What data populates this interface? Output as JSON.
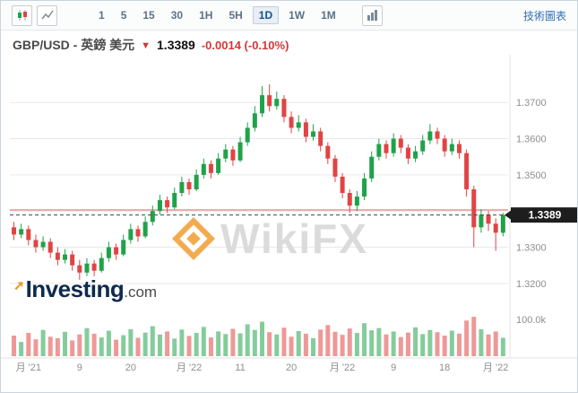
{
  "toolbar": {
    "timeframes": [
      "1",
      "5",
      "15",
      "30",
      "1H",
      "5H",
      "1D",
      "1W",
      "1M"
    ],
    "selected_timeframe": "1D",
    "link": "技術圖表",
    "icons": [
      "candlestick-chart-icon",
      "area-chart-icon",
      "indicators-icon"
    ]
  },
  "header": {
    "title": "GBP/USD - 英鎊 美元",
    "arrow": "▼",
    "price": "1.3389",
    "change": "-0.0014 (-0.10%)"
  },
  "watermark": {
    "text": "WikiFX"
  },
  "logo": {
    "arrow": "➚",
    "text_main": "Investing",
    "text_suffix": ".com"
  },
  "colors": {
    "up": "#1fa24a",
    "down": "#e04444",
    "accent_blue": "#2f6eb5",
    "change_red": "#d43737",
    "price_tag_bg": "#1e1e1e",
    "watermark_orange": "#f2a33c",
    "grid": "#e9e9e9",
    "axis_text": "#8e8e8e"
  },
  "chart_data": {
    "type": "candlestick",
    "pair": "GBP/USD",
    "title": "GBP/USD - 英鎊 美元",
    "last_price": 1.3389,
    "prev_close_line": 1.3403,
    "ylim": [
      1.316,
      1.376
    ],
    "y_ticks": [
      "1.3700",
      "1.3600",
      "1.3500",
      "1.3400",
      "1.3300",
      "1.3200"
    ],
    "x_labels": [
      "月 '21",
      "9",
      "20",
      "月 '22",
      "11",
      "20",
      "月 '22",
      "9",
      "18",
      "月 '22"
    ],
    "x_label_indices": [
      2,
      9,
      16,
      24,
      31,
      38,
      45,
      52,
      59,
      66
    ],
    "volume_tick": "100.0k",
    "volume_max": 110,
    "candles": [
      [
        1.3355,
        1.337,
        1.332,
        1.3335
      ],
      [
        1.3335,
        1.3365,
        1.3325,
        1.335
      ],
      [
        1.335,
        1.336,
        1.3305,
        1.332
      ],
      [
        1.332,
        1.3335,
        1.3285,
        1.33
      ],
      [
        1.33,
        1.333,
        1.329,
        1.3315
      ],
      [
        1.3315,
        1.3325,
        1.327,
        1.3285
      ],
      [
        1.3285,
        1.33,
        1.325,
        1.3265
      ],
      [
        1.3265,
        1.3295,
        1.3255,
        1.328
      ],
      [
        1.328,
        1.329,
        1.3235,
        1.325
      ],
      [
        1.325,
        1.3265,
        1.321,
        1.323
      ],
      [
        1.323,
        1.327,
        1.322,
        1.3255
      ],
      [
        1.3255,
        1.3265,
        1.322,
        1.3235
      ],
      [
        1.3235,
        1.3285,
        1.323,
        1.327
      ],
      [
        1.327,
        1.3315,
        1.326,
        1.33
      ],
      [
        1.33,
        1.331,
        1.3265,
        1.328
      ],
      [
        1.328,
        1.3335,
        1.3275,
        1.332
      ],
      [
        1.332,
        1.3365,
        1.331,
        1.335
      ],
      [
        1.335,
        1.336,
        1.3315,
        1.333
      ],
      [
        1.333,
        1.3385,
        1.3325,
        1.337
      ],
      [
        1.337,
        1.3415,
        1.336,
        1.34
      ],
      [
        1.34,
        1.3445,
        1.339,
        1.343
      ],
      [
        1.343,
        1.344,
        1.3395,
        1.341
      ],
      [
        1.341,
        1.3465,
        1.3405,
        1.345
      ],
      [
        1.345,
        1.3495,
        1.344,
        1.348
      ],
      [
        1.348,
        1.349,
        1.3445,
        1.346
      ],
      [
        1.346,
        1.3515,
        1.3455,
        1.35
      ],
      [
        1.35,
        1.3545,
        1.349,
        1.353
      ],
      [
        1.353,
        1.354,
        1.349,
        1.3505
      ],
      [
        1.3505,
        1.356,
        1.35,
        1.3545
      ],
      [
        1.3545,
        1.3585,
        1.3535,
        1.357
      ],
      [
        1.357,
        1.358,
        1.3525,
        1.354
      ],
      [
        1.354,
        1.3605,
        1.3535,
        1.359
      ],
      [
        1.359,
        1.3645,
        1.358,
        1.363
      ],
      [
        1.363,
        1.369,
        1.362,
        1.367
      ],
      [
        1.367,
        1.3745,
        1.366,
        1.372
      ],
      [
        1.372,
        1.375,
        1.3675,
        1.369
      ],
      [
        1.369,
        1.373,
        1.368,
        1.371
      ],
      [
        1.371,
        1.372,
        1.3645,
        1.366
      ],
      [
        1.366,
        1.3675,
        1.3615,
        1.363
      ],
      [
        1.363,
        1.3665,
        1.362,
        1.3645
      ],
      [
        1.3645,
        1.3655,
        1.359,
        1.3605
      ],
      [
        1.3605,
        1.364,
        1.3595,
        1.362
      ],
      [
        1.362,
        1.363,
        1.3565,
        1.358
      ],
      [
        1.358,
        1.359,
        1.353,
        1.3545
      ],
      [
        1.3545,
        1.3555,
        1.348,
        1.3495
      ],
      [
        1.3495,
        1.3505,
        1.3435,
        1.345
      ],
      [
        1.345,
        1.346,
        1.3395,
        1.3415
      ],
      [
        1.3415,
        1.3455,
        1.34,
        1.344
      ],
      [
        1.344,
        1.3505,
        1.343,
        1.349
      ],
      [
        1.349,
        1.3565,
        1.348,
        1.355
      ],
      [
        1.355,
        1.36,
        1.354,
        1.3585
      ],
      [
        1.3585,
        1.3595,
        1.3545,
        1.356
      ],
      [
        1.356,
        1.3615,
        1.355,
        1.36
      ],
      [
        1.36,
        1.361,
        1.356,
        1.3575
      ],
      [
        1.3575,
        1.3585,
        1.353,
        1.3545
      ],
      [
        1.3545,
        1.358,
        1.3535,
        1.3565
      ],
      [
        1.3565,
        1.361,
        1.3555,
        1.3595
      ],
      [
        1.3595,
        1.364,
        1.3585,
        1.362
      ],
      [
        1.362,
        1.363,
        1.3585,
        1.36
      ],
      [
        1.36,
        1.361,
        1.355,
        1.3565
      ],
      [
        1.3565,
        1.36,
        1.3555,
        1.3585
      ],
      [
        1.3585,
        1.3595,
        1.3545,
        1.356
      ],
      [
        1.356,
        1.357,
        1.344,
        1.346
      ],
      [
        1.346,
        1.347,
        1.33,
        1.3355
      ],
      [
        1.3355,
        1.3405,
        1.334,
        1.339
      ],
      [
        1.339,
        1.34,
        1.3345,
        1.3365
      ],
      [
        1.3365,
        1.338,
        1.329,
        1.334
      ],
      [
        1.334,
        1.3395,
        1.333,
        1.3389
      ]
    ],
    "volumes": [
      55,
      38,
      62,
      45,
      70,
      52,
      48,
      65,
      42,
      58,
      75,
      60,
      50,
      68,
      44,
      56,
      72,
      49,
      63,
      80,
      58,
      66,
      47,
      71,
      54,
      62,
      78,
      50,
      66,
      59,
      73,
      61,
      85,
      70,
      92,
      64,
      58,
      76,
      52,
      67,
      60,
      48,
      71,
      83,
      65,
      57,
      74,
      62,
      88,
      69,
      75,
      58,
      66,
      51,
      63,
      77,
      59,
      70,
      64,
      55,
      68,
      60,
      95,
      105,
      72,
      58,
      66,
      49
    ]
  }
}
